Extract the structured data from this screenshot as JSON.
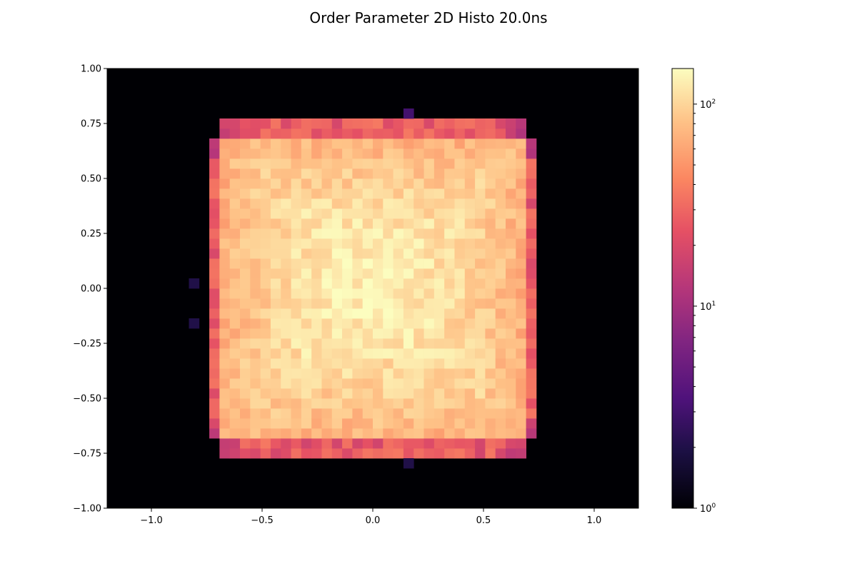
{
  "chart_data": {
    "type": "heatmap",
    "title": "Order Parameter 2D Histo 20.0ns",
    "xlabel": "",
    "ylabel": "",
    "xlim": [
      -1.2,
      1.2
    ],
    "ylim": [
      -1.0,
      1.0
    ],
    "x_ticks": [
      {
        "value": -1.0,
        "label": "−1.0"
      },
      {
        "value": -0.5,
        "label": "−0.5"
      },
      {
        "value": 0.0,
        "label": "0.0"
      },
      {
        "value": 0.5,
        "label": "0.5"
      },
      {
        "value": 1.0,
        "label": "1.0"
      }
    ],
    "y_ticks": [
      {
        "value": 1.0,
        "label": "1.00"
      },
      {
        "value": 0.75,
        "label": "0.75"
      },
      {
        "value": 0.5,
        "label": "0.50"
      },
      {
        "value": 0.25,
        "label": "0.25"
      },
      {
        "value": 0.0,
        "label": "0.00"
      },
      {
        "value": -0.25,
        "label": "−0.25"
      },
      {
        "value": -0.5,
        "label": "−0.50"
      },
      {
        "value": -0.75,
        "label": "−0.75"
      },
      {
        "value": -1.0,
        "label": "−1.00"
      }
    ],
    "bins": {
      "x_start": -1.2,
      "x_end": 1.2,
      "nx": 52,
      "y_start": -1.0,
      "y_end": 1.0,
      "ny": 44
    },
    "grid": false,
    "colormap": "magma",
    "background_color": "#000004",
    "colorbar": {
      "scale": "log",
      "min": 1,
      "max": 150,
      "major_ticks": [
        {
          "value": 1,
          "label_base": "10",
          "label_exp": "0"
        },
        {
          "value": 10,
          "label_base": "10",
          "label_exp": "1"
        },
        {
          "value": 100,
          "label_base": "10",
          "label_exp": "2"
        }
      ],
      "minor_ticks": [
        2,
        3,
        4,
        5,
        6,
        7,
        8,
        9,
        20,
        30,
        40,
        50,
        60,
        70,
        80,
        90
      ]
    },
    "distribution": {
      "square_x_range": [
        -0.75,
        0.75
      ],
      "square_y_range": [
        -0.75,
        0.75
      ],
      "center_count": 140,
      "inner_count": 75,
      "edge_count": 32,
      "corner_count": 18
    },
    "outlier_cells": [
      {
        "x": 0.14,
        "y": 0.8,
        "count": 3
      },
      {
        "x": 0.14,
        "y": -0.8,
        "count": 2
      },
      {
        "x": -0.79,
        "y": 0.0,
        "count": 2
      },
      {
        "x": -0.79,
        "y": -0.14,
        "count": 2
      }
    ]
  }
}
